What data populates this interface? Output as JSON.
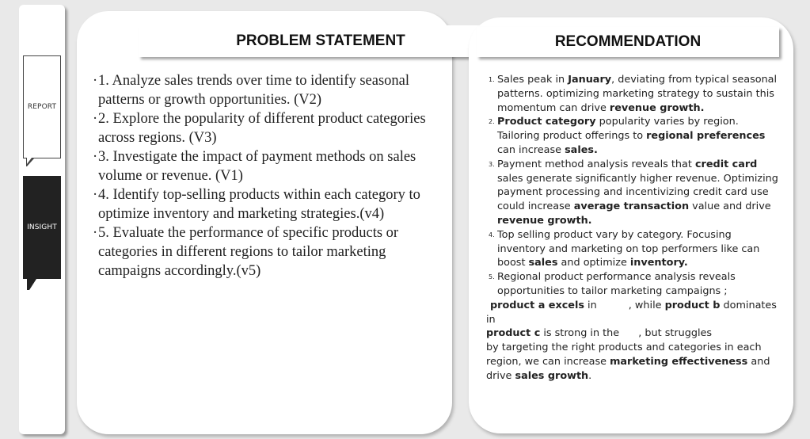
{
  "nav": {
    "report_label": "REPORT",
    "insight_label": "INSIGHT"
  },
  "problem": {
    "title": "PROBLEM STATEMENT",
    "items": [
      "1. Analyze sales trends over time to identify seasonal patterns or growth opportunities. (V2)",
      "2. Explore the popularity of different product categories across regions. (V3)",
      "3. Investigate the impact of payment methods on sales volume or revenue. (V1)",
      "4. Identify top-selling products within each category to optimize inventory and marketing strategies.(v4)",
      "5. Evaluate the performance of specific products or categories in different regions to tailor marketing campaigns accordingly.(v5)"
    ]
  },
  "recommendation": {
    "title": "RECOMMENDATION",
    "items": [
      {
        "num": "1.",
        "s1": "Sales peak in ",
        "b1": "January",
        "s2": ", deviating from typical seasonal patterns. optimizing marketing strategy to sustain this momentum can drive ",
        "b2": "revenue growth."
      },
      {
        "num": "2.",
        "b1": "Product category",
        "s1": " popularity varies by region. Tailoring product offerings to ",
        "b2": "regional preferences",
        "s2": " can increase ",
        "b3": "sales."
      },
      {
        "num": "3.",
        "s1": "Payment method analysis reveals that ",
        "b1": "credit card",
        "s2": " sales generate significantly higher revenue. Optimizing payment processing and incentivizing credit card use could increase ",
        "b2": "average transaction",
        "s3": " value and drive ",
        "b3": "revenue growth."
      },
      {
        "num": "4.",
        "s1": "Top selling product vary by category.  Focusing inventory and marketing on top performers like can boost ",
        "b1": "sales",
        "s2": " and optimize ",
        "b2": "inventory."
      },
      {
        "num": "5.",
        "s1": "Regional product performance analysis reveals opportunities to  tailor marketing  campaigns ;"
      }
    ],
    "tail": {
      "l1b": "product a excels",
      "l1s1": " in ",
      "l1s2": ", while ",
      "l1b2": "product b",
      "l1s3": " dominates",
      "l2": "in",
      "l3b": "product c",
      "l3s1": " is strong in the ",
      "l3s2": ", but struggles",
      "l4": "by targeting the right products and categories in each region, we can increase ",
      "l4b": "marketing effectiveness",
      "l4s": " and drive ",
      "l4b2": "sales growth",
      "l4e": "."
    }
  }
}
